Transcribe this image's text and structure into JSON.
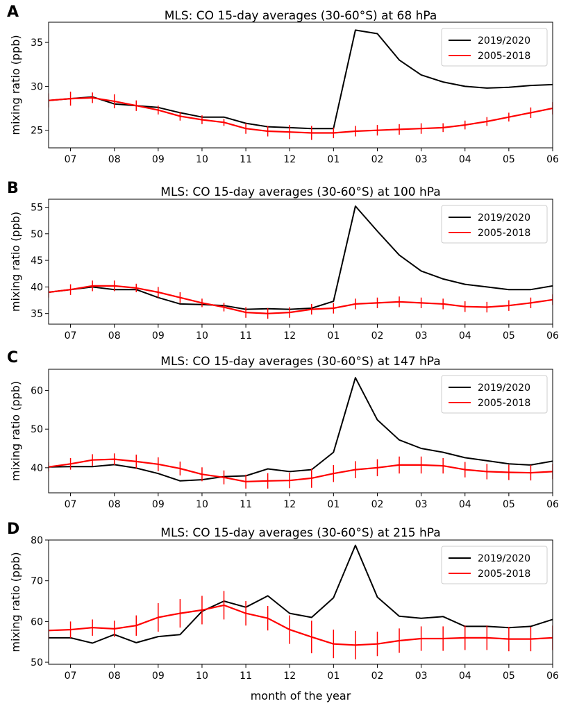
{
  "figure": {
    "xlabel": "month of the year"
  },
  "chart_data": [
    {
      "type": "line",
      "panel": "A",
      "title": "MLS: CO 15-day averages (30-60°S) at 68 hPa",
      "ylabel": "mixing ratio (ppb)",
      "xlabel": "",
      "x_ticks": [
        "07",
        "08",
        "09",
        "10",
        "11",
        "12",
        "01",
        "02",
        "03",
        "04",
        "05",
        "06"
      ],
      "xlim": [
        -0.5,
        11
      ],
      "ylim": [
        23,
        37.3
      ],
      "y_ticks": [
        25,
        30,
        35
      ],
      "legend_position": "top-right",
      "series": [
        {
          "name": "2019/2020",
          "color": "#000000",
          "x": [
            -0.5,
            0,
            0.5,
            1,
            1.5,
            2,
            2.5,
            3,
            3.5,
            4,
            4.5,
            5,
            5.5,
            6,
            6.5,
            7,
            7.5,
            8,
            8.5,
            9,
            9.5,
            10,
            10.5,
            11
          ],
          "y": [
            28.4,
            28.6,
            28.8,
            28.0,
            27.8,
            27.6,
            27.0,
            26.5,
            26.5,
            25.8,
            25.4,
            25.3,
            25.2,
            25.2,
            36.4,
            36.0,
            33.0,
            31.3,
            30.5,
            30.0,
            29.8,
            29.9,
            30.1,
            30.2
          ]
        },
        {
          "name": "2005-2018",
          "color": "#ff0000",
          "x": [
            -0.5,
            0,
            0.5,
            1,
            1.5,
            2,
            2.5,
            3,
            3.5,
            4,
            4.5,
            5,
            5.5,
            6,
            6.5,
            7,
            7.5,
            8,
            8.5,
            9,
            9.5,
            10,
            10.5,
            11
          ],
          "y": [
            28.4,
            28.6,
            28.7,
            28.3,
            27.8,
            27.3,
            26.6,
            26.2,
            25.9,
            25.2,
            24.9,
            24.8,
            24.7,
            24.7,
            24.9,
            25.0,
            25.1,
            25.2,
            25.3,
            25.6,
            26.0,
            26.5,
            27.0,
            27.5
          ],
          "err": [
            0.8,
            0.8,
            0.6,
            0.8,
            0.6,
            0.5,
            0.5,
            0.5,
            0.4,
            0.6,
            0.6,
            0.8,
            0.8,
            0.6,
            0.6,
            0.6,
            0.6,
            0.6,
            0.5,
            0.5,
            0.5,
            0.5,
            0.6,
            0.7
          ]
        }
      ]
    },
    {
      "type": "line",
      "panel": "B",
      "title": "MLS: CO 15-day averages (30-60°S) at 100 hPa",
      "ylabel": "mixing ratio (ppb)",
      "xlabel": "",
      "x_ticks": [
        "07",
        "08",
        "09",
        "10",
        "11",
        "12",
        "01",
        "02",
        "03",
        "04",
        "05",
        "06"
      ],
      "xlim": [
        -0.5,
        11
      ],
      "ylim": [
        33,
        56.5
      ],
      "y_ticks": [
        35,
        40,
        45,
        50,
        55
      ],
      "legend_position": "top-right",
      "series": [
        {
          "name": "2019/2020",
          "color": "#000000",
          "x": [
            -0.5,
            0,
            0.5,
            1,
            1.5,
            2,
            2.5,
            3,
            3.5,
            4,
            4.5,
            5,
            5.5,
            6,
            6.5,
            7,
            7.5,
            8,
            8.5,
            9,
            9.5,
            10,
            10.5,
            11
          ],
          "y": [
            39.0,
            39.5,
            40.0,
            39.5,
            39.5,
            38.0,
            36.8,
            36.7,
            36.5,
            35.8,
            35.9,
            35.8,
            36.0,
            37.3,
            55.2,
            50.5,
            46.0,
            43.0,
            41.5,
            40.5,
            40.0,
            39.5,
            39.5,
            40.2
          ],
          "err": []
        },
        {
          "name": "2005-2018",
          "color": "#ff0000",
          "x": [
            -0.5,
            0,
            0.5,
            1,
            1.5,
            2,
            2.5,
            3,
            3.5,
            4,
            4.5,
            5,
            5.5,
            6,
            6.5,
            7,
            7.5,
            8,
            8.5,
            9,
            9.5,
            10,
            10.5,
            11
          ],
          "y": [
            39.0,
            39.5,
            40.2,
            40.2,
            39.8,
            39.0,
            38.0,
            37.0,
            36.2,
            35.2,
            35.0,
            35.2,
            35.8,
            36.0,
            36.8,
            37.0,
            37.2,
            37.0,
            36.8,
            36.3,
            36.2,
            36.5,
            37.0,
            37.6
          ],
          "err": [
            1.0,
            1.0,
            1.0,
            1.0,
            0.8,
            1.0,
            1.0,
            0.8,
            0.8,
            1.0,
            1.0,
            1.0,
            1.0,
            1.0,
            1.0,
            1.0,
            1.0,
            1.0,
            1.0,
            1.0,
            1.0,
            1.0,
            1.0,
            1.0
          ]
        }
      ]
    },
    {
      "type": "line",
      "panel": "C",
      "title": "MLS: CO 15-day averages (30-60°S) at 147 hPa",
      "ylabel": "mixing ratio (ppb)",
      "xlabel": "",
      "x_ticks": [
        "07",
        "08",
        "09",
        "10",
        "11",
        "12",
        "01",
        "02",
        "03",
        "04",
        "05",
        "06"
      ],
      "xlim": [
        -0.5,
        11
      ],
      "ylim": [
        33.5,
        65.5
      ],
      "y_ticks": [
        40,
        50,
        60
      ],
      "legend_position": "top-right",
      "series": [
        {
          "name": "2019/2020",
          "color": "#000000",
          "x": [
            -0.5,
            0,
            0.5,
            1,
            1.5,
            2,
            2.5,
            3,
            3.5,
            4,
            4.5,
            5,
            5.5,
            6,
            6.5,
            7,
            7.5,
            8,
            8.5,
            9,
            9.5,
            10,
            10.5,
            11
          ],
          "y": [
            40.2,
            40.3,
            40.3,
            40.8,
            39.9,
            38.5,
            36.6,
            36.9,
            37.7,
            37.9,
            39.7,
            39.0,
            39.5,
            44.0,
            63.3,
            52.4,
            47.2,
            45.0,
            44.0,
            42.6,
            41.8,
            41.0,
            40.7,
            41.7
          ],
          "err": []
        },
        {
          "name": "2005-2018",
          "color": "#ff0000",
          "x": [
            -0.5,
            0,
            0.5,
            1,
            1.5,
            2,
            2.5,
            3,
            3.5,
            4,
            4.5,
            5,
            5.5,
            6,
            6.5,
            7,
            7.5,
            8,
            8.5,
            9,
            9.5,
            10,
            10.5,
            11
          ],
          "y": [
            40.2,
            41.0,
            42.0,
            42.2,
            41.6,
            40.9,
            39.8,
            38.3,
            37.5,
            36.4,
            36.6,
            36.7,
            37.3,
            38.5,
            39.5,
            40.0,
            40.7,
            40.7,
            40.5,
            39.5,
            39.0,
            38.8,
            38.7,
            39.0
          ],
          "err": [
            1.2,
            1.5,
            1.5,
            1.5,
            1.8,
            1.8,
            1.8,
            1.8,
            1.8,
            1.8,
            2.0,
            2.0,
            2.5,
            2.2,
            2.2,
            2.2,
            2.2,
            2.2,
            2.0,
            2.0,
            2.0,
            2.0,
            2.0,
            2.0
          ]
        }
      ]
    },
    {
      "type": "line",
      "panel": "D",
      "title": "MLS: CO 15-day averages (30-60°S) at 215 hPa",
      "ylabel": "mixing ratio (ppb)",
      "xlabel": "month of the year",
      "x_ticks": [
        "07",
        "08",
        "09",
        "10",
        "11",
        "12",
        "01",
        "02",
        "03",
        "04",
        "05",
        "06"
      ],
      "xlim": [
        -0.5,
        11
      ],
      "ylim": [
        49.5,
        80
      ],
      "y_ticks": [
        50,
        60,
        70,
        80
      ],
      "legend_position": "top-right",
      "series": [
        {
          "name": "2019/2020",
          "color": "#000000",
          "x": [
            -0.5,
            0,
            0.5,
            1,
            1.5,
            2,
            2.5,
            3,
            3.5,
            4,
            4.5,
            5,
            5.5,
            6,
            6.5,
            7,
            7.5,
            8,
            8.5,
            9,
            9.5,
            10,
            10.5,
            11
          ],
          "y": [
            56.0,
            56.0,
            54.7,
            56.8,
            54.8,
            56.3,
            56.8,
            62.5,
            65.0,
            63.5,
            66.3,
            62.0,
            61.0,
            65.8,
            78.7,
            66.0,
            61.3,
            60.8,
            61.2,
            58.8,
            58.8,
            58.5,
            58.8,
            60.5
          ],
          "err": []
        },
        {
          "name": "2005-2018",
          "color": "#ff0000",
          "x": [
            -0.5,
            0,
            0.5,
            1,
            1.5,
            2,
            2.5,
            3,
            3.5,
            4,
            4.5,
            5,
            5.5,
            6,
            6.5,
            7,
            7.5,
            8,
            8.5,
            9,
            9.5,
            10,
            10.5,
            11
          ],
          "y": [
            57.8,
            58.0,
            58.5,
            58.2,
            59.0,
            61.0,
            62.0,
            62.8,
            64.0,
            62.0,
            60.8,
            58.0,
            56.2,
            54.5,
            54.2,
            54.5,
            55.3,
            55.8,
            55.8,
            56.0,
            56.0,
            55.7,
            55.7,
            56.0
          ],
          "err": [
            2.0,
            2.0,
            2.0,
            2.0,
            2.5,
            3.5,
            3.5,
            3.5,
            3.5,
            3.0,
            3.0,
            3.5,
            4.0,
            3.5,
            3.5,
            3.0,
            3.0,
            3.0,
            3.0,
            3.0,
            3.0,
            3.0,
            3.0,
            3.0
          ]
        }
      ]
    }
  ]
}
